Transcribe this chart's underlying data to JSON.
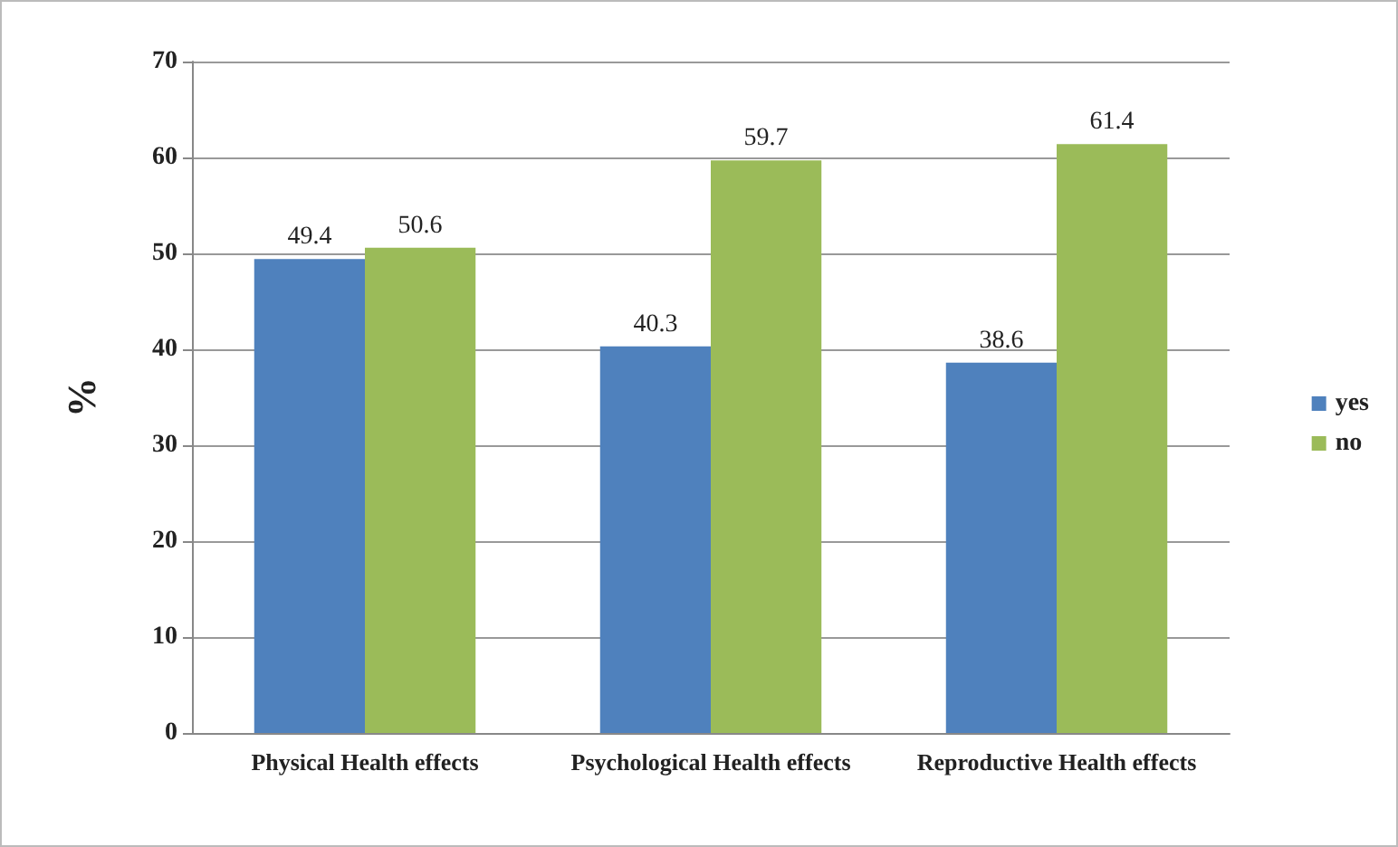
{
  "chart_data": {
    "type": "bar",
    "ylabel": "%",
    "categories": [
      "Physical Health effects",
      "Psychological Health effects",
      "Reproductive Health effects"
    ],
    "series": [
      {
        "name": "yes",
        "color": "#4f81bd",
        "values": [
          49.4,
          40.3,
          38.6
        ]
      },
      {
        "name": "no",
        "color": "#9bbb59",
        "values": [
          50.6,
          59.7,
          61.4
        ]
      }
    ],
    "ylim": [
      0,
      70
    ],
    "yticks": [
      0,
      10,
      20,
      30,
      40,
      50,
      60,
      70
    ],
    "grid": "y",
    "legend": "right",
    "data_labels": true
  }
}
